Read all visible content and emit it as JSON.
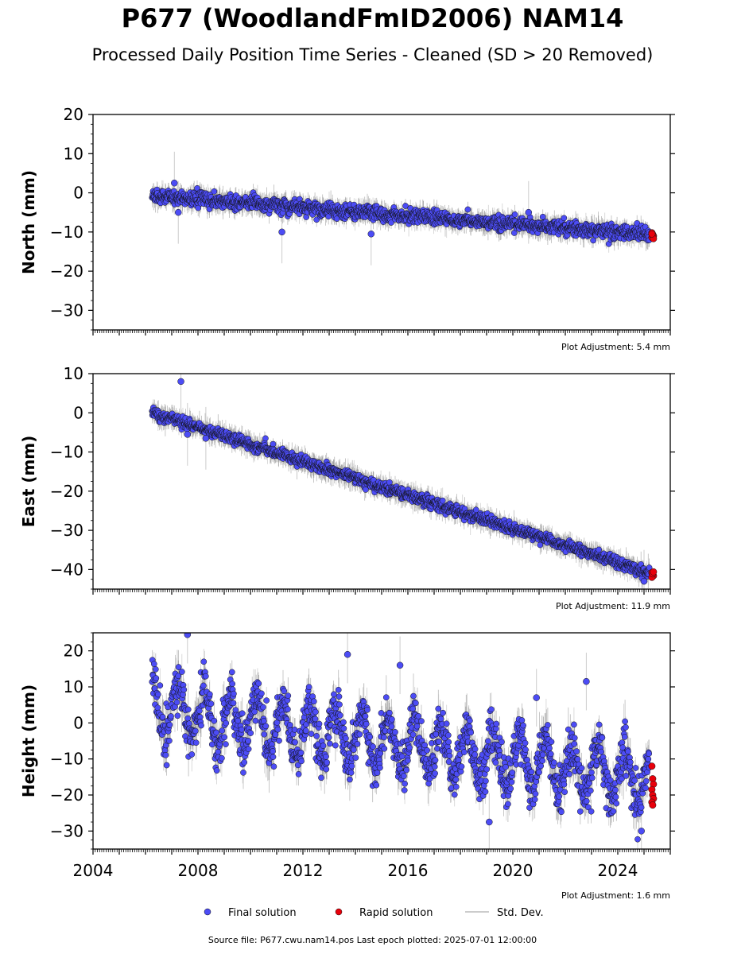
{
  "title": "P677 (WoodlandFmID2006) NAM14",
  "subtitle": "Processed Daily Position Time Series - Cleaned (SD > 20 Removed)",
  "footer": "Source file: P677.cwu.nam14.pos  Last epoch plotted: 2025-07-01 12:00:00",
  "colors": {
    "final": "#4c4cf5",
    "rapid": "#e8000b",
    "stddev": "#cccccc",
    "stddev_dense": "#3a3a3a",
    "outline": "#000000"
  },
  "legend": {
    "placement": "bottom-center",
    "items": [
      {
        "label": "Final solution",
        "marker": "circle",
        "color": "#4c4cf5"
      },
      {
        "label": "Rapid solution",
        "marker": "circle",
        "color": "#e8000b"
      },
      {
        "label": "Std. Dev.",
        "marker": "line",
        "color": "#cccccc"
      }
    ]
  },
  "chart_data": [
    {
      "type": "scatter",
      "ylabel": "North (mm)",
      "ylim": [
        -35,
        20
      ],
      "yticks": [
        -30,
        -20,
        -10,
        0,
        10,
        20
      ],
      "xlim": [
        2004.0,
        2026.0
      ],
      "adjustment": "Plot Adjustment: 5.4 mm",
      "data_start": 2006.25,
      "data_end": 2025.5,
      "trend": {
        "start": -0.8,
        "end": -10.8
      },
      "noise_sd": 0.9,
      "series": [
        {
          "name": "Final solution"
        },
        {
          "name": "Rapid solution"
        }
      ],
      "rapid_values": [
        -10.2,
        -10.6,
        -11.0,
        -11.4,
        -10.9,
        -11.7,
        -10.5
      ],
      "outliers": [
        {
          "x": 2007.1,
          "y": 2.5
        },
        {
          "x": 2007.25,
          "y": -5.0
        },
        {
          "x": 2011.2,
          "y": -10.0
        },
        {
          "x": 2014.6,
          "y": -10.5
        },
        {
          "x": 2020.6,
          "y": -5.0
        }
      ]
    },
    {
      "type": "scatter",
      "ylabel": "East (mm)",
      "ylim": [
        -45,
        10
      ],
      "yticks": [
        -40,
        -30,
        -20,
        -10,
        0,
        10
      ],
      "xlim": [
        2004.0,
        2026.0
      ],
      "adjustment": "Plot Adjustment: 11.9 mm",
      "data_start": 2006.25,
      "data_end": 2025.5,
      "trend": {
        "start": 0.0,
        "end": -41.5
      },
      "noise_sd": 0.7,
      "series": [
        {
          "name": "Final solution"
        },
        {
          "name": "Rapid solution"
        }
      ],
      "rapid_values": [
        -40.8,
        -41.3,
        -41.6,
        -42.0,
        -41.1,
        -40.6
      ],
      "outliers": [
        {
          "x": 2007.35,
          "y": 8.0
        },
        {
          "x": 2007.6,
          "y": -5.5
        },
        {
          "x": 2008.3,
          "y": -6.5
        },
        {
          "x": 2025.0,
          "y": -43.0
        }
      ]
    },
    {
      "type": "scatter",
      "ylabel": "Height (mm)",
      "ylim": [
        -35,
        25
      ],
      "yticks": [
        -30,
        -20,
        -10,
        0,
        10,
        20
      ],
      "xlim": [
        2004.0,
        2026.0
      ],
      "xticks": [
        2004,
        2008,
        2012,
        2016,
        2020,
        2024
      ],
      "xticklabels": [
        "2004",
        "2008",
        "2012",
        "2016",
        "2020",
        "2024"
      ],
      "adjustment": "Plot Adjustment: 1.6 mm",
      "data_start": 2006.25,
      "data_end": 2025.5,
      "trend": {
        "start": 4.0,
        "end": -16.0
      },
      "seasonal_amplitude": 7.0,
      "noise_sd": 3.2,
      "series": [
        {
          "name": "Final solution"
        },
        {
          "name": "Rapid solution"
        }
      ],
      "rapid_values": [
        -12.0,
        -15.5,
        -17.0,
        -18.5,
        -20.0,
        -21.0,
        -22.0,
        -22.8
      ],
      "outliers": [
        {
          "x": 2007.6,
          "y": 24.5
        },
        {
          "x": 2013.7,
          "y": 19.0
        },
        {
          "x": 2015.7,
          "y": 16.0
        },
        {
          "x": 2022.8,
          "y": 11.5
        },
        {
          "x": 2020.9,
          "y": 7.0
        },
        {
          "x": 2019.1,
          "y": -27.5
        },
        {
          "x": 2024.9,
          "y": -30.0
        }
      ]
    }
  ]
}
